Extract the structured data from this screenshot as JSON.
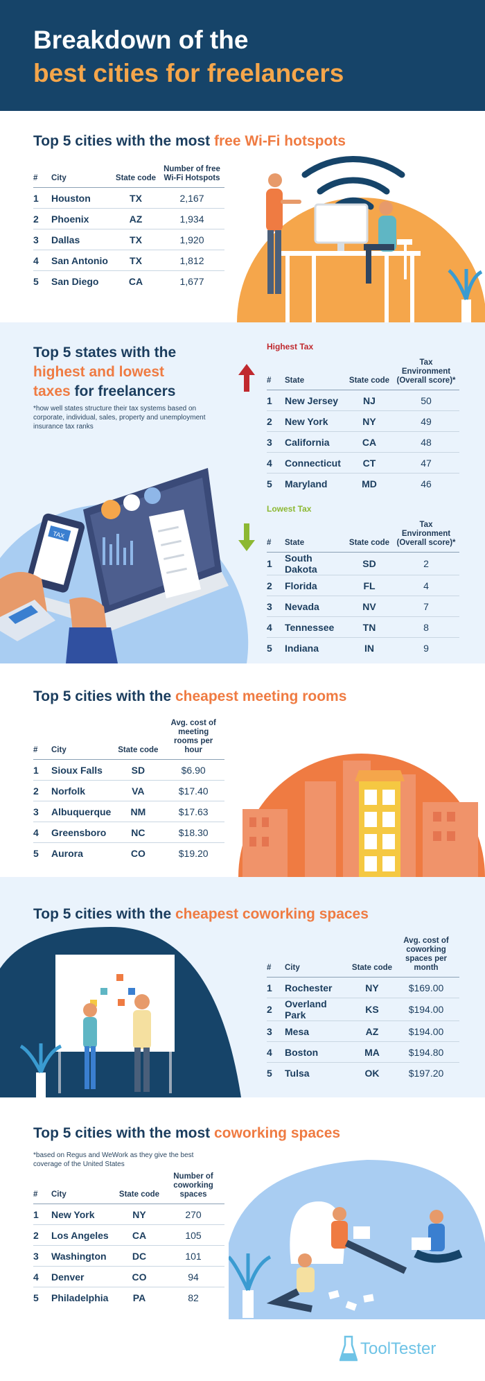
{
  "header": {
    "line1": "Breakdown of the",
    "line2": "best cities for freelancers"
  },
  "wifi": {
    "title_pre": "Top 5 cities with the most ",
    "title_hl": "free Wi-Fi hotspots",
    "headers": {
      "rank": "#",
      "city": "City",
      "state": "State code",
      "value": "Number of free Wi-Fi Hotspots"
    },
    "rows": [
      {
        "rank": "1",
        "city": "Houston",
        "state": "TX",
        "value": "2,167"
      },
      {
        "rank": "2",
        "city": "Phoenix",
        "state": "AZ",
        "value": "1,934"
      },
      {
        "rank": "3",
        "city": "Dallas",
        "state": "TX",
        "value": "1,920"
      },
      {
        "rank": "4",
        "city": "San Antonio",
        "state": "TX",
        "value": "1,812"
      },
      {
        "rank": "5",
        "city": "San Diego",
        "state": "CA",
        "value": "1,677"
      }
    ]
  },
  "taxes": {
    "title_1": "Top 5 states with the",
    "title_hl": "highest and lowest",
    "title_hl2": "taxes",
    "title_3": " for freelancers",
    "note": "*how well states structure their tax systems based on corporate, individual, sales, property and unemployment insurance tax ranks",
    "highest_label": "Highest Tax",
    "lowest_label": "Lowest Tax",
    "headers": {
      "rank": "#",
      "state": "State",
      "code": "State code",
      "value": "Tax Environment (Overall score)*"
    },
    "highest": [
      {
        "rank": "1",
        "state": "New Jersey",
        "code": "NJ",
        "value": "50"
      },
      {
        "rank": "2",
        "state": "New York",
        "code": "NY",
        "value": "49"
      },
      {
        "rank": "3",
        "state": "California",
        "code": "CA",
        "value": "48"
      },
      {
        "rank": "4",
        "state": "Connecticut",
        "code": "CT",
        "value": "47"
      },
      {
        "rank": "5",
        "state": "Maryland",
        "code": "MD",
        "value": "46"
      }
    ],
    "lowest": [
      {
        "rank": "1",
        "state": "South Dakota",
        "code": "SD",
        "value": "2"
      },
      {
        "rank": "2",
        "state": "Florida",
        "code": "FL",
        "value": "4"
      },
      {
        "rank": "3",
        "state": "Nevada",
        "code": "NV",
        "value": "7"
      },
      {
        "rank": "4",
        "state": "Tennessee",
        "code": "TN",
        "value": "8"
      },
      {
        "rank": "5",
        "state": "Indiana",
        "code": "IN",
        "value": "9"
      }
    ],
    "tablet_label": "TAX"
  },
  "meeting": {
    "title_pre": "Top 5 cities with the ",
    "title_hl": "cheapest meeting rooms",
    "headers": {
      "rank": "#",
      "city": "City",
      "state": "State code",
      "value": "Avg. cost of meeting rooms per hour"
    },
    "rows": [
      {
        "rank": "1",
        "city": "Sioux Falls",
        "state": "SD",
        "value": "$6.90"
      },
      {
        "rank": "2",
        "city": "Norfolk",
        "state": "VA",
        "value": "$17.40"
      },
      {
        "rank": "3",
        "city": "Albuquerque",
        "state": "NM",
        "value": "$17.63"
      },
      {
        "rank": "4",
        "city": "Greensboro",
        "state": "NC",
        "value": "$18.30"
      },
      {
        "rank": "5",
        "city": "Aurora",
        "state": "CO",
        "value": "$19.20"
      }
    ]
  },
  "cowork_cost": {
    "title_pre": "Top 5 cities with the ",
    "title_hl": "cheapest coworking spaces",
    "headers": {
      "rank": "#",
      "city": "City",
      "state": "State code",
      "value": "Avg. cost of coworking spaces per month"
    },
    "rows": [
      {
        "rank": "1",
        "city": "Rochester",
        "state": "NY",
        "value": "$169.00"
      },
      {
        "rank": "2",
        "city": "Overland Park",
        "state": "KS",
        "value": "$194.00"
      },
      {
        "rank": "3",
        "city": "Mesa",
        "state": "AZ",
        "value": "$194.00"
      },
      {
        "rank": "4",
        "city": "Boston",
        "state": "MA",
        "value": "$194.80"
      },
      {
        "rank": "5",
        "city": "Tulsa",
        "state": "OK",
        "value": "$197.20"
      }
    ]
  },
  "cowork_count": {
    "title_pre": "Top 5 cities with the most ",
    "title_hl": "coworking spaces",
    "note": "*based on Regus and WeWork as they give the best coverage of the United States",
    "headers": {
      "rank": "#",
      "city": "City",
      "state": "State code",
      "value": "Number of coworking spaces"
    },
    "rows": [
      {
        "rank": "1",
        "city": "New York",
        "state": "NY",
        "value": "270"
      },
      {
        "rank": "2",
        "city": "Los Angeles",
        "state": "CA",
        "value": "105"
      },
      {
        "rank": "3",
        "city": "Washington",
        "state": "DC",
        "value": "101"
      },
      {
        "rank": "4",
        "city": "Denver",
        "state": "CO",
        "value": "94"
      },
      {
        "rank": "5",
        "city": "Philadelphia",
        "state": "PA",
        "value": "82"
      }
    ]
  },
  "brand": {
    "name": "ToolTester"
  },
  "colors": {
    "navy": "#164469",
    "orange": "#ef7b42",
    "gold": "#f5a64b",
    "light": "#eaf3fc",
    "red": "#c0292e",
    "green": "#8cb832"
  }
}
